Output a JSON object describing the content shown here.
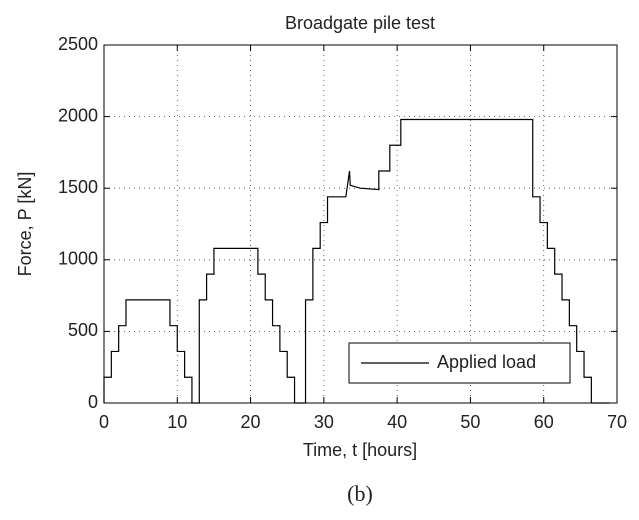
{
  "chart_data": {
    "type": "line",
    "title": "Broadgate pile test",
    "xlabel": "Time, t [hours]",
    "ylabel": "Force, P [kN]",
    "caption": "(b)",
    "x": [
      0,
      0,
      1,
      1,
      2,
      2,
      3,
      3,
      9,
      9,
      10,
      10,
      11,
      11,
      12,
      12,
      13,
      13,
      14,
      14,
      15,
      15,
      21,
      21,
      22,
      22,
      23,
      23,
      24,
      24,
      25,
      25,
      26,
      26,
      27.5,
      27.5,
      28.5,
      28.5,
      29.5,
      29.5,
      30.5,
      30.5,
      33,
      33.5,
      33.6,
      35,
      37.5,
      37.5,
      39,
      39,
      40.5,
      40.5,
      58.5,
      58.5,
      59.5,
      59.5,
      60.5,
      60.5,
      61.5,
      61.5,
      62.5,
      62.5,
      63.5,
      63.5,
      64.5,
      64.5,
      65.5,
      65.5,
      66.5,
      66.5,
      69
    ],
    "series": [
      {
        "name": "Applied load",
        "color": "#000000",
        "values": [
          0,
          180,
          180,
          360,
          360,
          540,
          540,
          720,
          720,
          540,
          540,
          360,
          360,
          180,
          180,
          0,
          0,
          720,
          720,
          900,
          900,
          1080,
          1080,
          900,
          900,
          720,
          720,
          540,
          540,
          360,
          360,
          180,
          180,
          0,
          0,
          720,
          720,
          1080,
          1080,
          1260,
          1260,
          1440,
          1440,
          1620,
          1520,
          1500,
          1490,
          1620,
          1620,
          1800,
          1800,
          1980,
          1980,
          1440,
          1440,
          1260,
          1260,
          1080,
          1080,
          900,
          900,
          720,
          720,
          540,
          540,
          360,
          360,
          180,
          180,
          0,
          0
        ]
      }
    ],
    "xlim": [
      0,
      70
    ],
    "ylim": [
      0,
      2500
    ],
    "xticks": [
      0,
      10,
      20,
      30,
      40,
      50,
      60,
      70
    ],
    "yticks": [
      0,
      500,
      1000,
      1500,
      2000,
      2500
    ],
    "grid": true,
    "legend": "lower right"
  }
}
